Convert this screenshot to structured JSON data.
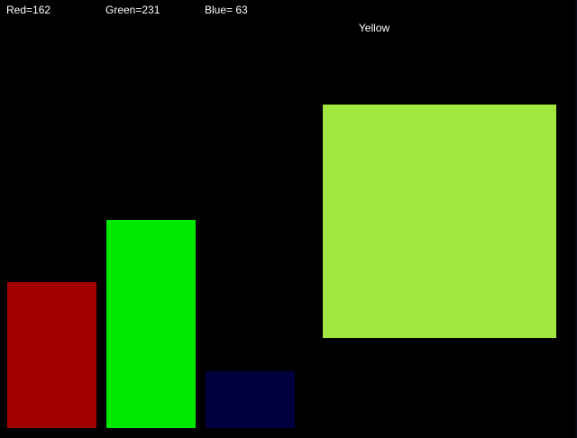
{
  "readouts": {
    "red_label": "Red=162",
    "green_label": "Green=231",
    "blue_label": "Blue= 63"
  },
  "color_name": "Yellow",
  "channels": {
    "red": {
      "value": 162,
      "max": 255,
      "color": "#a20000"
    },
    "green": {
      "value": 231,
      "max": 255,
      "color": "#00e700"
    },
    "blue": {
      "value": 63,
      "max": 255,
      "color": "#00003f"
    }
  },
  "swatch_color": "#a2e73f",
  "background_color": "#000000"
}
